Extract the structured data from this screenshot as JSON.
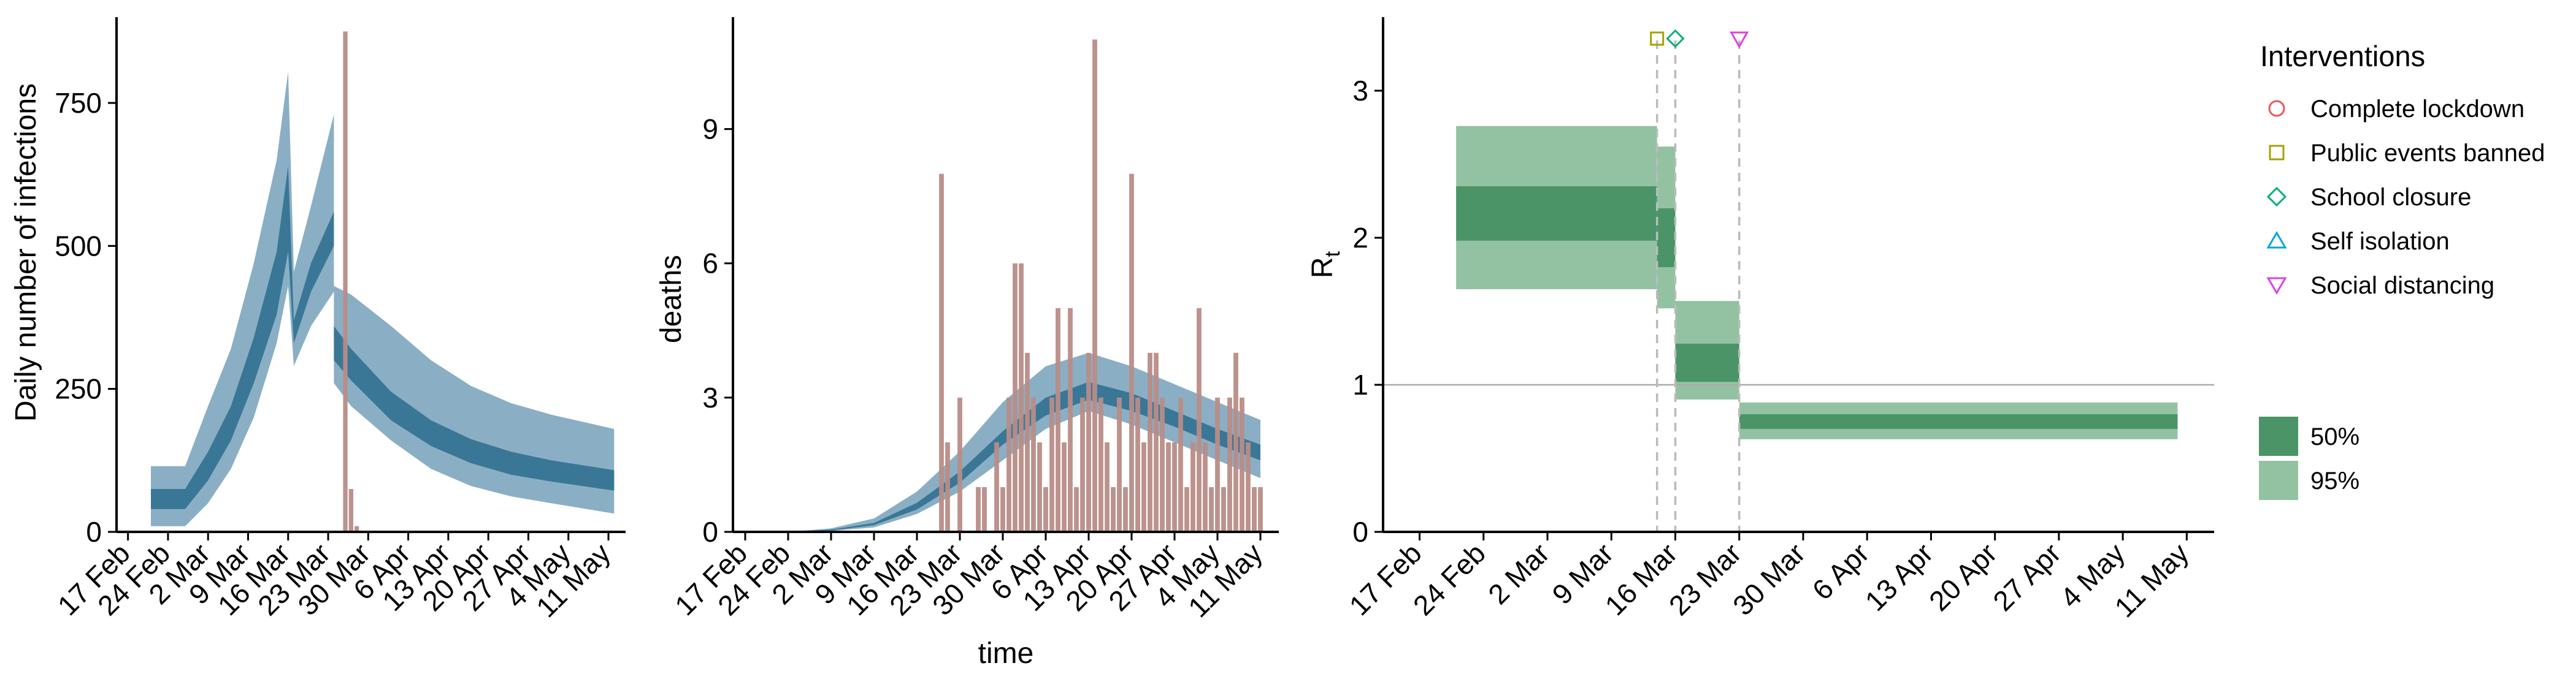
{
  "colors": {
    "blue_outer": "#8aafc4",
    "blue_inner": "#3a7796",
    "death_bar": "#b88c87",
    "green_outer": "#93c2a3",
    "green_inner": "#4a9468",
    "axis": "#000000",
    "dashed": "#bbbbbb",
    "refline": "#aaaaaa",
    "lockdown": "#e8585a",
    "events": "#a3a300",
    "school": "#00b074",
    "isolation": "#00a8d8",
    "distancing": "#e040e0"
  },
  "date_ticks": [
    "17 Feb",
    "24 Feb",
    "2 Mar",
    "9 Mar",
    "16 Mar",
    "23 Mar",
    "30 Mar",
    "6 Apr",
    "13 Apr",
    "20 Apr",
    "27 Apr",
    "4 May",
    "11 May"
  ],
  "chart_data": [
    {
      "type": "area",
      "ylabel": "Daily number of infections",
      "xlabel": "",
      "x_ticks": [
        "17 Feb",
        "24 Feb",
        "2 Mar",
        "9 Mar",
        "16 Mar",
        "23 Mar",
        "30 Mar",
        "6 Apr",
        "13 Apr",
        "20 Apr",
        "27 Apr",
        "4 May",
        "11 May"
      ],
      "y_ticks": [
        0,
        250,
        500,
        750
      ],
      "ylim": [
        0,
        900
      ],
      "xlim": [
        "2020-02-15",
        "2020-05-14"
      ],
      "series": [
        {
          "kind": "band95",
          "x": [
            "2020-02-21",
            "2020-02-27",
            "2020-03-02",
            "2020-03-06",
            "2020-03-10",
            "2020-03-14",
            "2020-03-16",
            "2020-03-17",
            "2020-03-20",
            "2020-03-24",
            "2020-03-24",
            "2020-03-27",
            "2020-04-03",
            "2020-04-10",
            "2020-04-17",
            "2020-04-24",
            "2020-05-01",
            "2020-05-12"
          ],
          "upper": [
            115,
            115,
            220,
            320,
            470,
            650,
            805,
            455,
            570,
            730,
            430,
            415,
            360,
            300,
            255,
            225,
            205,
            180
          ],
          "lower": [
            10,
            10,
            50,
            110,
            200,
            330,
            430,
            290,
            360,
            420,
            260,
            220,
            160,
            110,
            80,
            62,
            50,
            32
          ]
        },
        {
          "kind": "band50",
          "x": [
            "2020-02-21",
            "2020-02-27",
            "2020-03-02",
            "2020-03-06",
            "2020-03-10",
            "2020-03-14",
            "2020-03-16",
            "2020-03-17",
            "2020-03-20",
            "2020-03-24",
            "2020-03-24",
            "2020-03-27",
            "2020-04-03",
            "2020-04-10",
            "2020-04-17",
            "2020-04-24",
            "2020-05-01",
            "2020-05-12"
          ],
          "upper": [
            75,
            75,
            140,
            220,
            340,
            490,
            640,
            370,
            470,
            560,
            360,
            320,
            245,
            195,
            162,
            140,
            125,
            108
          ],
          "lower": [
            40,
            40,
            90,
            160,
            260,
            380,
            490,
            330,
            420,
            500,
            300,
            265,
            195,
            150,
            120,
            100,
            88,
            72
          ]
        },
        {
          "kind": "bars",
          "x": [
            "2020-03-26",
            "2020-03-27",
            "2020-03-28"
          ],
          "values": [
            875,
            75,
            10
          ]
        }
      ]
    },
    {
      "type": "area",
      "ylabel": "deaths",
      "xlabel": "time",
      "x_ticks": [
        "17 Feb",
        "24 Feb",
        "2 Mar",
        "9 Mar",
        "16 Mar",
        "23 Mar",
        "30 Mar",
        "6 Apr",
        "13 Apr",
        "20 Apr",
        "27 Apr",
        "4 May",
        "11 May"
      ],
      "y_ticks": [
        0,
        3,
        6,
        9
      ],
      "ylim": [
        0,
        11.5
      ],
      "xlim": [
        "2020-02-15",
        "2020-05-14"
      ],
      "series": [
        {
          "kind": "band95",
          "x": [
            "2020-02-24",
            "2020-03-02",
            "2020-03-09",
            "2020-03-16",
            "2020-03-23",
            "2020-03-30",
            "2020-04-06",
            "2020-04-13",
            "2020-04-20",
            "2020-04-27",
            "2020-05-04",
            "2020-05-11"
          ],
          "upper": [
            0,
            0.08,
            0.3,
            0.9,
            1.8,
            2.9,
            3.7,
            4.0,
            3.7,
            3.3,
            2.9,
            2.5
          ],
          "lower": [
            0,
            0.02,
            0.1,
            0.4,
            0.9,
            1.6,
            2.3,
            2.7,
            2.4,
            2.0,
            1.6,
            1.2
          ]
        },
        {
          "kind": "band50",
          "x": [
            "2020-02-24",
            "2020-03-02",
            "2020-03-09",
            "2020-03-16",
            "2020-03-23",
            "2020-03-30",
            "2020-04-06",
            "2020-04-13",
            "2020-04-20",
            "2020-04-27",
            "2020-05-04",
            "2020-05-11"
          ],
          "upper": [
            0,
            0.05,
            0.2,
            0.65,
            1.35,
            2.25,
            3.0,
            3.35,
            3.1,
            2.7,
            2.3,
            1.95
          ],
          "lower": [
            0,
            0.03,
            0.15,
            0.5,
            1.1,
            1.95,
            2.6,
            2.95,
            2.7,
            2.35,
            1.95,
            1.6
          ]
        },
        {
          "kind": "bars",
          "x": [
            "2020-03-20",
            "2020-03-21",
            "2020-03-23",
            "2020-03-26",
            "2020-03-27",
            "2020-03-29",
            "2020-03-30",
            "2020-03-31",
            "2020-04-01",
            "2020-04-02",
            "2020-04-03",
            "2020-04-04",
            "2020-04-05",
            "2020-04-06",
            "2020-04-07",
            "2020-04-08",
            "2020-04-09",
            "2020-04-10",
            "2020-04-11",
            "2020-04-12",
            "2020-04-13",
            "2020-04-14",
            "2020-04-15",
            "2020-04-16",
            "2020-04-17",
            "2020-04-18",
            "2020-04-19",
            "2020-04-20",
            "2020-04-21",
            "2020-04-22",
            "2020-04-23",
            "2020-04-24",
            "2020-04-25",
            "2020-04-26",
            "2020-04-27",
            "2020-04-28",
            "2020-04-29",
            "2020-04-30",
            "2020-05-01",
            "2020-05-02",
            "2020-05-03",
            "2020-05-04",
            "2020-05-05",
            "2020-05-06",
            "2020-05-07",
            "2020-05-08",
            "2020-05-09",
            "2020-05-10",
            "2020-05-11"
          ],
          "values": [
            8,
            2,
            3,
            1,
            1,
            2,
            1,
            3,
            6,
            6,
            4,
            3,
            2,
            1,
            3,
            5,
            2,
            5,
            1,
            3,
            4,
            11,
            3,
            2,
            1,
            3,
            1,
            8,
            3,
            2,
            4,
            4,
            3,
            2,
            2,
            3,
            1,
            2,
            5,
            2,
            1,
            3,
            1,
            3,
            4,
            3,
            2,
            1,
            1
          ]
        }
      ]
    },
    {
      "type": "area",
      "ylabel": "R",
      "ylabel_sub": "t",
      "xlabel": "",
      "x_ticks": [
        "17 Feb",
        "24 Feb",
        "2 Mar",
        "9 Mar",
        "16 Mar",
        "23 Mar",
        "30 Mar",
        "6 Apr",
        "13 Apr",
        "20 Apr",
        "27 Apr",
        "4 May",
        "11 May"
      ],
      "y_ticks": [
        0,
        1,
        2,
        3
      ],
      "ylim": [
        0,
        3.5
      ],
      "xlim": [
        "2020-02-13",
        "2020-05-14"
      ],
      "reference_line": 1,
      "steps": [
        {
          "start": "2020-02-21",
          "end": "2020-03-14",
          "lo95": 1.65,
          "hi95": 2.76,
          "lo50": 1.98,
          "hi50": 2.35
        },
        {
          "start": "2020-03-14",
          "end": "2020-03-16",
          "lo95": 1.52,
          "hi95": 2.62,
          "lo50": 1.8,
          "hi50": 2.2
        },
        {
          "start": "2020-03-16",
          "end": "2020-03-23",
          "lo95": 0.9,
          "hi95": 1.57,
          "lo50": 1.02,
          "hi50": 1.28
        },
        {
          "start": "2020-03-23",
          "end": "2020-05-10",
          "lo95": 0.63,
          "hi95": 0.88,
          "lo50": 0.7,
          "hi50": 0.8
        }
      ],
      "interventions": [
        {
          "name": "Public events banned",
          "date": "2020-03-14",
          "symbol": "square"
        },
        {
          "name": "School closure",
          "date": "2020-03-16",
          "symbol": "diamond"
        },
        {
          "name": "Social distancing",
          "date": "2020-03-23",
          "symbol": "triangle-down"
        }
      ]
    }
  ],
  "legend": {
    "title": "Interventions",
    "items": [
      {
        "label": "Complete lockdown",
        "symbol": "circle",
        "color": "#e8585a"
      },
      {
        "label": "Public events banned",
        "symbol": "square",
        "color": "#a3a300"
      },
      {
        "label": "School closure",
        "symbol": "diamond",
        "color": "#00b074"
      },
      {
        "label": "Self isolation",
        "symbol": "triangle-up",
        "color": "#00a8d8"
      },
      {
        "label": "Social distancing",
        "symbol": "triangle-down",
        "color": "#e040e0"
      }
    ],
    "ci_items": [
      {
        "label": "50%",
        "color": "#4a9468"
      },
      {
        "label": "95%",
        "color": "#93c2a3"
      }
    ]
  }
}
